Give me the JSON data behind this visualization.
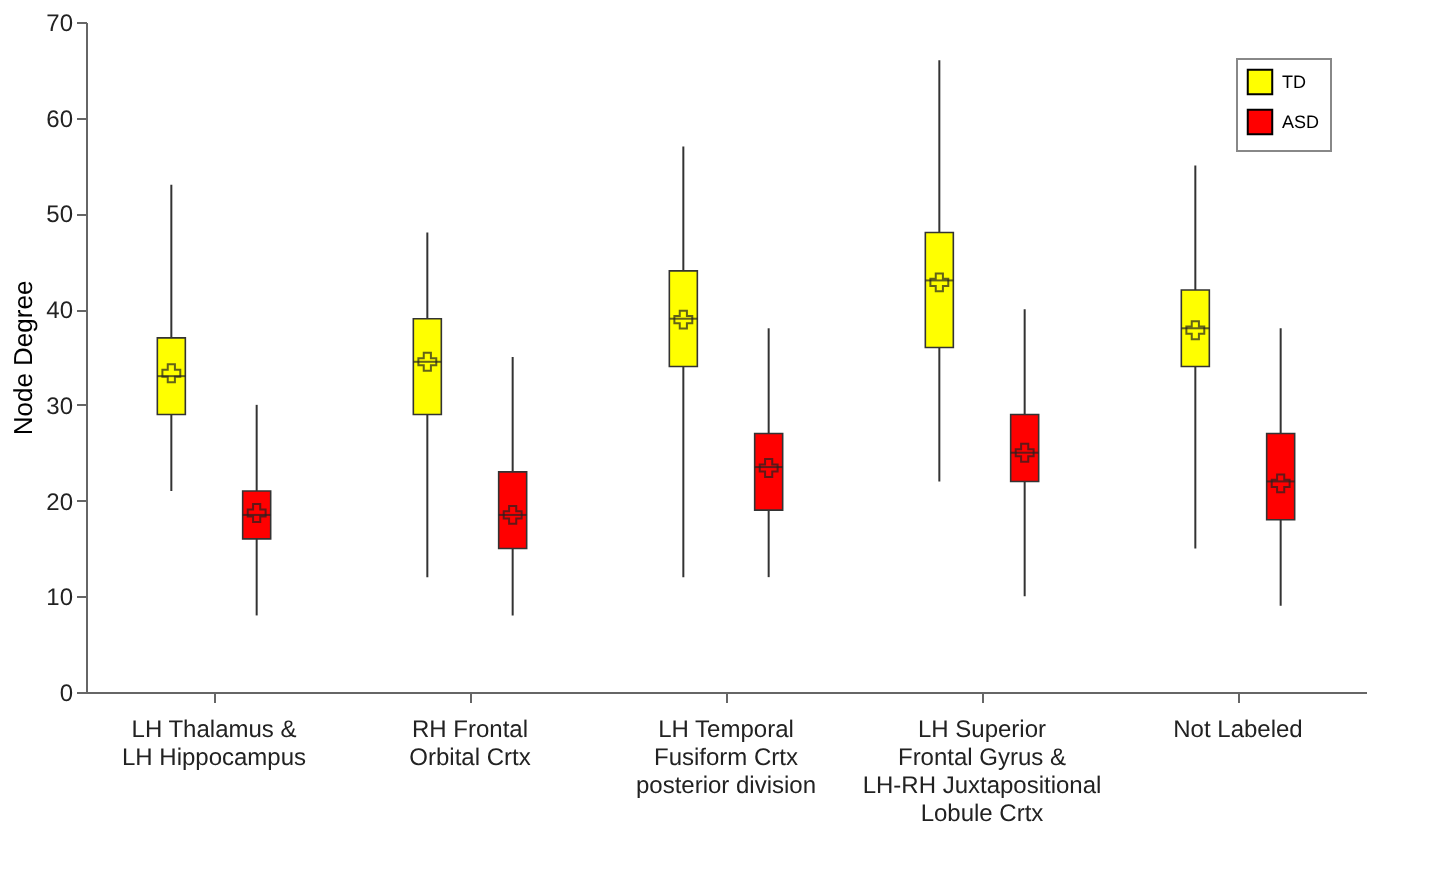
{
  "chart_data": {
    "type": "box",
    "ylabel": "Node Degree",
    "categories": [
      "LH Thalamus &\nLH Hippocampus",
      "RH Frontal\nOrbital Crtx",
      "LH Temporal\nFusiform Crtx\nposterior division",
      "LH Superior\nFrontal Gyrus &\nLH-RH Juxtapositional\nLobule Crtx",
      "Not Labeled"
    ],
    "ylim": [
      0,
      70
    ],
    "yticks": [
      0,
      10,
      20,
      30,
      40,
      50,
      60,
      70
    ],
    "grid": false,
    "legend": "top right",
    "series": [
      {
        "name": "TD",
        "color": "#ffff00",
        "boxes": [
          {
            "low": 21,
            "q1": 29,
            "median": 33,
            "q3": 37,
            "high": 53,
            "mean": 33.3
          },
          {
            "low": 12,
            "q1": 29,
            "median": 34.5,
            "q3": 39,
            "high": 48,
            "mean": 34.5
          },
          {
            "low": 12,
            "q1": 34,
            "median": 39,
            "q3": 44,
            "high": 57,
            "mean": 38.9
          },
          {
            "low": 22,
            "q1": 36,
            "median": 43,
            "q3": 48,
            "high": 66,
            "mean": 42.8
          },
          {
            "low": 15,
            "q1": 34,
            "median": 38,
            "q3": 42,
            "high": 55,
            "mean": 37.8
          }
        ]
      },
      {
        "name": "ASD",
        "color": "#ff0000",
        "boxes": [
          {
            "low": 8,
            "q1": 16,
            "median": 18.5,
            "q3": 21,
            "high": 30,
            "mean": 18.7
          },
          {
            "low": 8,
            "q1": 15,
            "median": 18.5,
            "q3": 23,
            "high": 35,
            "mean": 18.5
          },
          {
            "low": 12,
            "q1": 19,
            "median": 23.5,
            "q3": 27,
            "high": 38,
            "mean": 23.4
          },
          {
            "low": 10,
            "q1": 22,
            "median": 25,
            "q3": 29,
            "high": 40,
            "mean": 25
          },
          {
            "low": 9,
            "q1": 18,
            "median": 22,
            "q3": 27,
            "high": 38,
            "mean": 21.8
          }
        ]
      }
    ]
  }
}
